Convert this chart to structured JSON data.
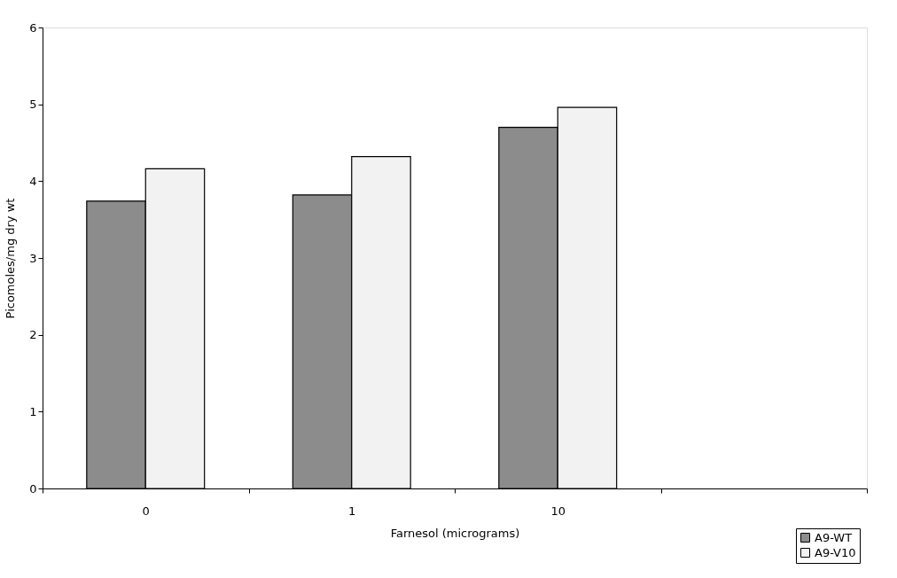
{
  "chart_data": {
    "type": "bar",
    "xlabel": "Farnesol  (micrograms)",
    "ylabel": "Picomoles/mg dry wt",
    "categories": [
      "0",
      "1",
      "10",
      null
    ],
    "series": [
      {
        "name": "A9-WT",
        "color": "#8c8c8c",
        "values": [
          3.74,
          3.82,
          4.7,
          null
        ]
      },
      {
        "name": "A9-V10",
        "color": "#f2f2f2",
        "values": [
          4.16,
          4.32,
          4.96,
          null
        ]
      }
    ],
    "ylim": [
      0,
      6
    ],
    "yticks": [
      0,
      1,
      2,
      3,
      4,
      5,
      6
    ],
    "grid": false,
    "legend": "bottom right"
  }
}
